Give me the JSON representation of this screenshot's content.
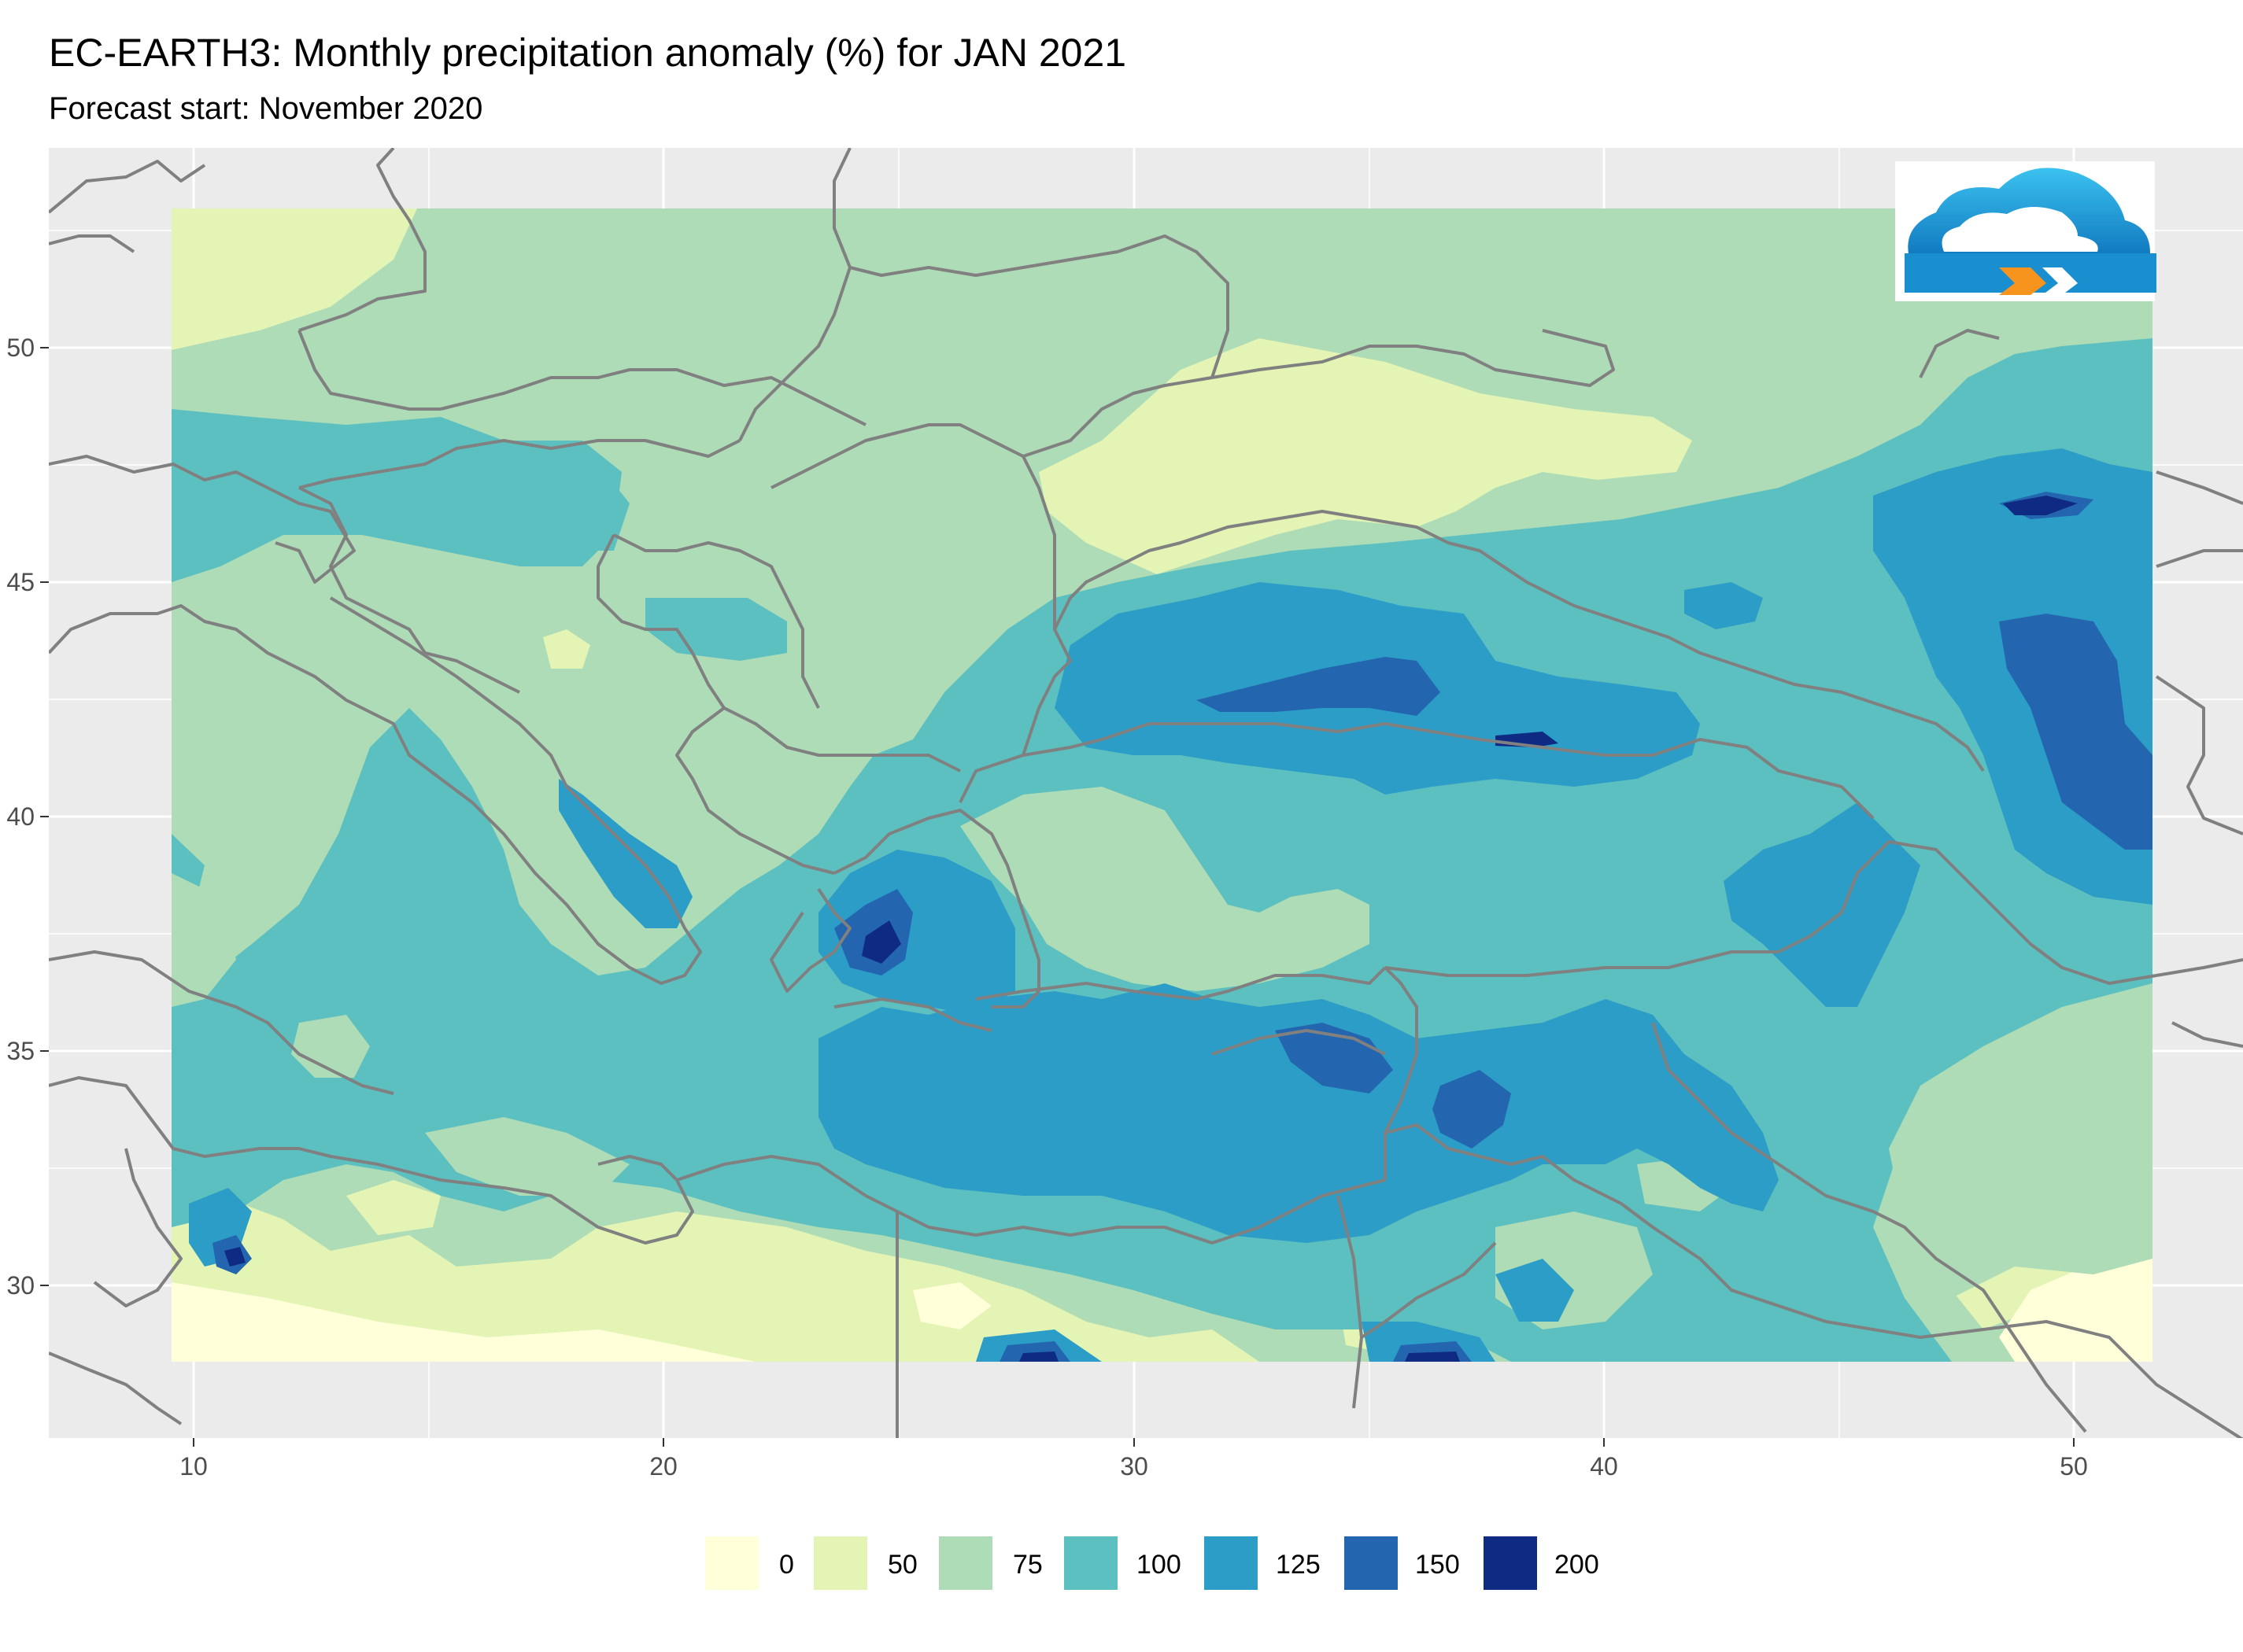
{
  "title": "EC-EARTH3: Monthly precipitation anomaly (%) for JAN 2021",
  "subtitle": "Forecast start: November 2020",
  "logo": {
    "icon": "cloud-logo-icon",
    "colors": [
      "#1ca7e0",
      "#0a6fb8",
      "#f7941d"
    ]
  },
  "map": {
    "panel_background": "#ebebeb",
    "grid_color": "#ffffff",
    "border_color": "#808080",
    "lon_range": [
      6.9,
      53.4
    ],
    "lat_range": [
      26.8,
      54.2
    ],
    "x_ticks": [
      "10",
      "20",
      "30",
      "40",
      "50"
    ],
    "y_ticks": [
      "30",
      "35",
      "40",
      "45",
      "50"
    ]
  },
  "legend": {
    "entries": [
      {
        "label": "0",
        "color": "#ffffd9"
      },
      {
        "label": "50",
        "color": "#e4f4b5"
      },
      {
        "label": "75",
        "color": "#addcb6"
      },
      {
        "label": "100",
        "color": "#5cbfc0"
      },
      {
        "label": "125",
        "color": "#2b9dc6"
      },
      {
        "label": "150",
        "color": "#2365ae"
      },
      {
        "label": "200",
        "color": "#0f2a83"
      }
    ]
  }
}
